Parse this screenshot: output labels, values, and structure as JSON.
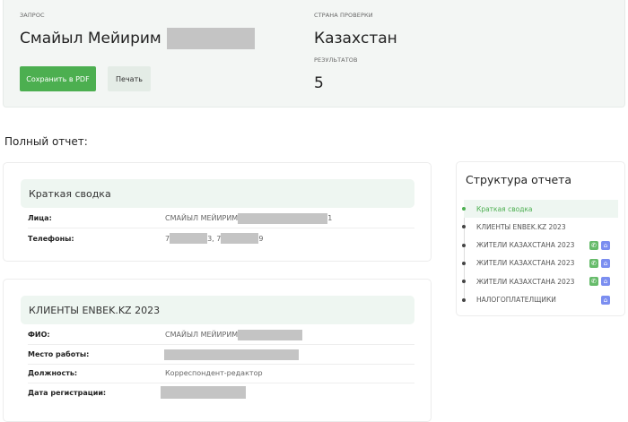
{
  "header": {
    "query_label": "ЗАПРОС",
    "query_name": "Смайыл Мейирим",
    "country_label": "СТРАНА ПРОВЕРКИ",
    "country": "Казахстан",
    "results_label": "РЕЗУЛЬТАТОВ",
    "results_count": "5",
    "save_pdf": "Сохранить в PDF",
    "print": "Печать"
  },
  "full_report_label": "Полный отчет:",
  "summary": {
    "title": "Краткая сводка",
    "rows": [
      {
        "key": "Лица:",
        "value_prefix": "СМАЙЫЛ МЕЙИРИМ",
        "value_suffix": "1"
      },
      {
        "key": "Телефоны:",
        "p1": "7",
        "p2": "3, 7",
        "p3": "9"
      }
    ]
  },
  "enbek": {
    "title": "КЛИЕНТЫ ENBEK.KZ 2023",
    "rows": [
      {
        "key": "ФИО:",
        "value": "СМАЙЫЛ МЕЙИРИМ"
      },
      {
        "key": "Место работы:",
        "value": ""
      },
      {
        "key": "Должность:",
        "value": "Корреспондент-редактор"
      },
      {
        "key": "Дата регистрации:",
        "value": ""
      }
    ]
  },
  "structure": {
    "title": "Структура отчета",
    "items": [
      {
        "label": "Краткая сводка",
        "active": true,
        "icons": []
      },
      {
        "label": "КЛИЕНТЫ ENBEK.KZ 2023",
        "icons": []
      },
      {
        "label": "ЖИТЕЛИ КАЗАХСТАНА 2023",
        "icons": [
          "phone-icon",
          "home-icon"
        ]
      },
      {
        "label": "ЖИТЕЛИ КАЗАХСТАНА 2023",
        "icons": [
          "phone-icon",
          "home-icon"
        ]
      },
      {
        "label": "ЖИТЕЛИ КАЗАХСТАНА 2023",
        "icons": [
          "phone-icon",
          "home-icon"
        ]
      },
      {
        "label": "НАЛОГОПЛАТЕЛЩИКИ",
        "icons": [
          "home-icon"
        ]
      }
    ]
  },
  "colors": {
    "accent": "#4caf50",
    "home_icon": "#7b8ef0",
    "panel_bg": "#f3f6f4"
  }
}
